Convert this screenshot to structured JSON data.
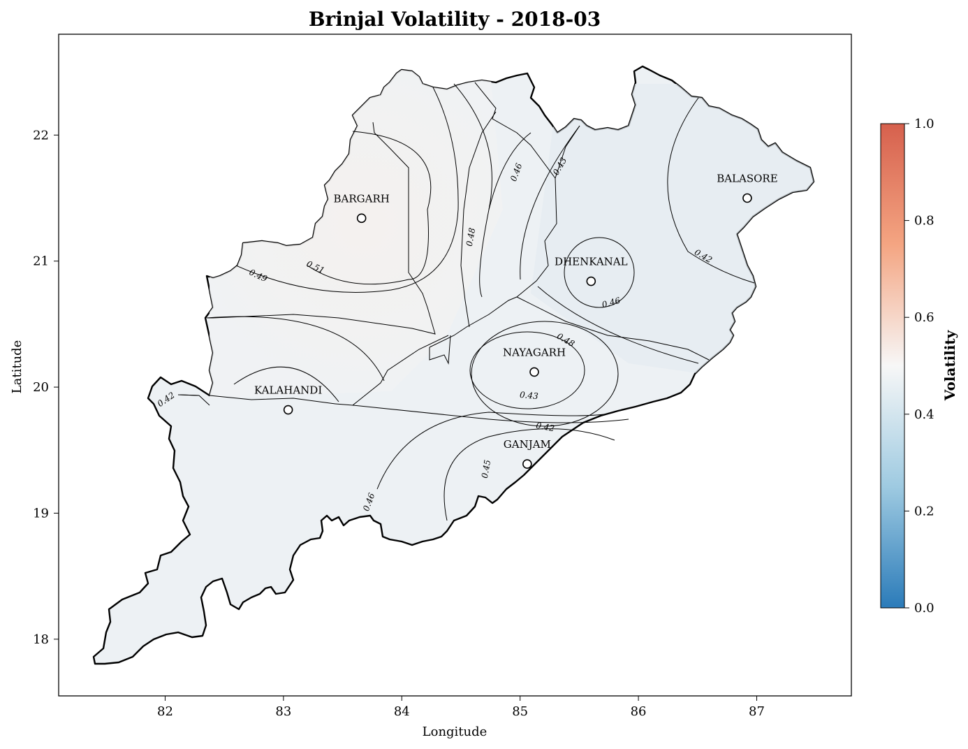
{
  "chart_data": {
    "type": "heatmap",
    "title": "Brinjal Volatility - 2018-03",
    "xlabel": "Longitude",
    "ylabel": "Latitude",
    "xlim": [
      81.1,
      87.8
    ],
    "ylim": [
      17.55,
      22.8
    ],
    "x_ticks": [
      "82",
      "83",
      "84",
      "85",
      "86",
      "87"
    ],
    "y_ticks": [
      "18",
      "19",
      "20",
      "21",
      "22"
    ],
    "colorbar": {
      "label": "Volatility",
      "range": [
        0.0,
        1.0
      ],
      "ticks": [
        "0.0",
        "0.2",
        "0.4",
        "0.6",
        "0.8",
        "1.0"
      ],
      "colors": [
        "#2b7bb9",
        "#9ecae1",
        "#f7f7f7",
        "#f4a582",
        "#d6604d"
      ]
    },
    "districts": [
      {
        "name": "BARGARH",
        "lon": 83.66,
        "lat": 21.34
      },
      {
        "name": "BALASORE",
        "lon": 86.92,
        "lat": 21.5
      },
      {
        "name": "DHENKANAL",
        "lon": 85.6,
        "lat": 20.84
      },
      {
        "name": "NAYAGARH",
        "lon": 85.12,
        "lat": 20.12
      },
      {
        "name": "KALAHANDI",
        "lon": 83.04,
        "lat": 19.82
      },
      {
        "name": "GANJAM",
        "lon": 85.06,
        "lat": 19.39
      }
    ],
    "contour_labels": [
      "0.51",
      "0.49",
      "0.48",
      "0.46",
      "0.43",
      "0.42",
      "0.46",
      "0.48",
      "0.43",
      "0.42",
      "0.45",
      "0.46",
      "0.42"
    ]
  }
}
